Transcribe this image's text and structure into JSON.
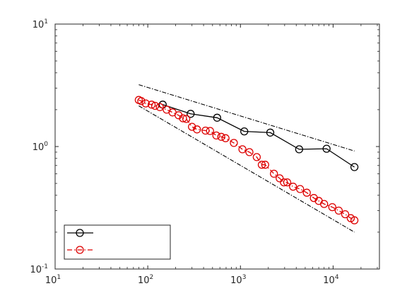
{
  "chart_data": {
    "type": "line",
    "xscale": "log",
    "yscale": "log",
    "xlim": [
      10,
      31623
    ],
    "ylim": [
      0.1,
      10
    ],
    "x_ticks": [
      {
        "value": 10,
        "base": "10",
        "exp": "1"
      },
      {
        "value": 100,
        "base": "10",
        "exp": "2"
      },
      {
        "value": 1000,
        "base": "10",
        "exp": "3"
      },
      {
        "value": 10000,
        "base": "10",
        "exp": "4"
      }
    ],
    "y_ticks": [
      {
        "value": 0.1,
        "base": "10",
        "exp": "-1"
      },
      {
        "value": 1,
        "base": "10",
        "exp": "0"
      },
      {
        "value": 10,
        "base": "10",
        "exp": "1"
      }
    ],
    "grid": false,
    "legend_position": "bottom-left",
    "series": [
      {
        "line_color": "#000000",
        "style": "solid",
        "marker": "circle",
        "x": [
          145,
          290,
          560,
          1100,
          2100,
          4300,
          8500,
          17000
        ],
        "y": [
          2.2,
          1.85,
          1.72,
          1.33,
          1.3,
          0.95,
          0.96,
          0.68
        ]
      },
      {
        "line_color": "#dd0000",
        "style": "dashdot",
        "marker": "circle",
        "x": [
          80,
          85,
          95,
          110,
          120,
          135,
          160,
          185,
          215,
          240,
          260,
          300,
          340,
          420,
          470,
          550,
          620,
          690,
          850,
          1050,
          1250,
          1500,
          1700,
          1850,
          2300,
          2650,
          2950,
          3200,
          3700,
          4400,
          5200,
          6200,
          7000,
          8000,
          9800,
          11500,
          13500,
          15500,
          17000
        ],
        "y": [
          2.4,
          2.35,
          2.25,
          2.2,
          2.15,
          2.1,
          2.0,
          1.9,
          1.8,
          1.7,
          1.68,
          1.45,
          1.38,
          1.35,
          1.34,
          1.23,
          1.2,
          1.17,
          1.07,
          0.95,
          0.9,
          0.82,
          0.71,
          0.71,
          0.6,
          0.55,
          0.51,
          0.51,
          0.47,
          0.45,
          0.42,
          0.38,
          0.36,
          0.34,
          0.32,
          0.3,
          0.28,
          0.26,
          0.25
        ]
      },
      {
        "line_color": "#000000",
        "style": "dashdot-reference",
        "marker": "none",
        "x": [
          80,
          17000
        ],
        "y": [
          3.2,
          0.92
        ]
      },
      {
        "line_color": "#000000",
        "style": "dashdot-reference",
        "marker": "none",
        "x": [
          80,
          17000
        ],
        "y": [
          2.15,
          0.2
        ]
      }
    ]
  }
}
